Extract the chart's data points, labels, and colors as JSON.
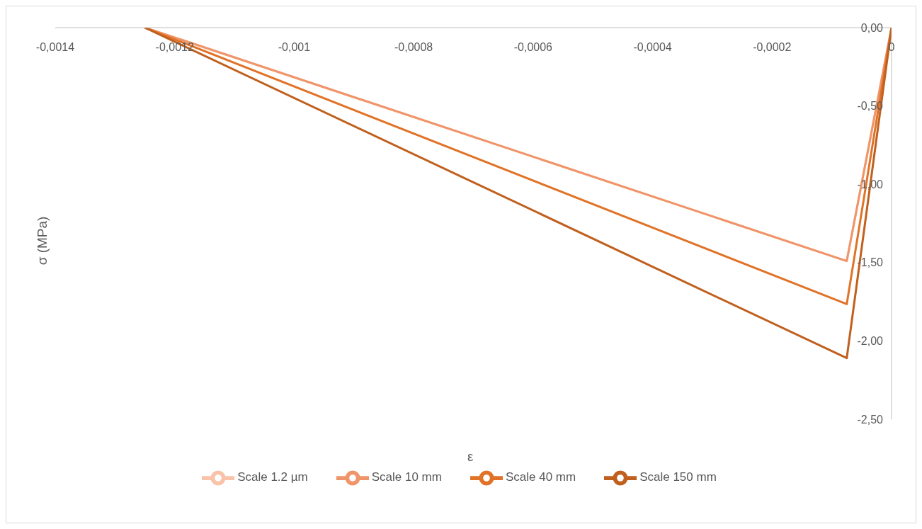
{
  "chart_data": {
    "type": "line",
    "xlabel": "ε",
    "ylabel": "σ (MPa)",
    "xlim": [
      -0.0014,
      0
    ],
    "ylim": [
      -2.5,
      0
    ],
    "xticks": [
      {
        "value": -0.0014,
        "label": "-0,0014"
      },
      {
        "value": -0.0012,
        "label": "-0,0012"
      },
      {
        "value": -0.001,
        "label": "-0,001"
      },
      {
        "value": -0.0008,
        "label": "-0,0008"
      },
      {
        "value": -0.0006,
        "label": "-0,0006"
      },
      {
        "value": -0.0004,
        "label": "-0,0004"
      },
      {
        "value": -0.0002,
        "label": "-0,0002"
      },
      {
        "value": 0,
        "label": "0"
      }
    ],
    "yticks": [
      {
        "value": 0,
        "label": "0,00"
      },
      {
        "value": -0.5,
        "label": "-0,50"
      },
      {
        "value": -1,
        "label": "-1,00"
      },
      {
        "value": -1.5,
        "label": "-1,50"
      },
      {
        "value": -2,
        "label": "-2,00"
      },
      {
        "value": -2.5,
        "label": "-2,50"
      }
    ],
    "series": [
      {
        "name": "Scale 1.2 µm",
        "color": "#f8c3a8",
        "x": [
          0,
          -7.5e-05,
          -0.00125
        ],
        "values": [
          0,
          -1.49,
          0
        ]
      },
      {
        "name": "Scale 10 mm",
        "color": "#f0956a",
        "x": [
          0,
          -7.5e-05,
          -0.00125
        ],
        "values": [
          0,
          -1.49,
          0
        ]
      },
      {
        "name": "Scale  40 mm",
        "color": "#e07328",
        "x": [
          0,
          -7.5e-05,
          -0.00125
        ],
        "values": [
          0,
          -1.765,
          0
        ]
      },
      {
        "name": "Scale 150 mm",
        "color": "#c0601f",
        "x": [
          0,
          -7.5e-05,
          -0.00125
        ],
        "values": [
          0,
          -2.11,
          0
        ]
      }
    ],
    "grid": false,
    "legend": "bottom",
    "marker": "none",
    "line_style": "solid"
  }
}
